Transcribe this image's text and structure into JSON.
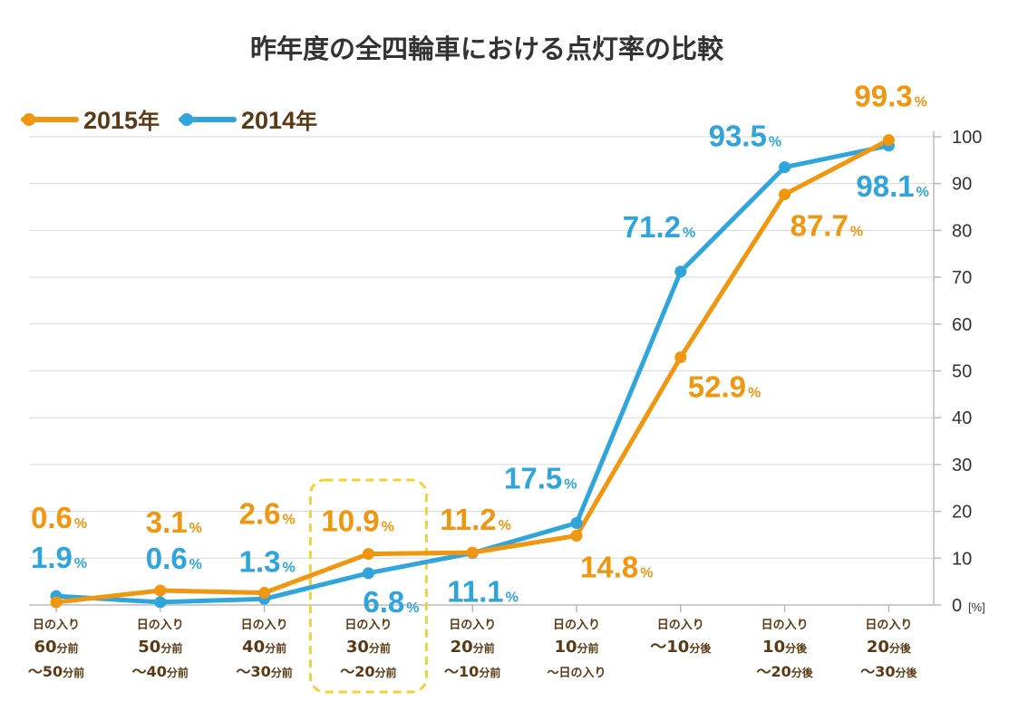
{
  "chart_data": {
    "type": "line",
    "title": "昨年度の全四輪車における点灯率の比較",
    "categories": [
      {
        "line1": "日の入り",
        "line2": "60",
        "line2_suffix": "分前",
        "line3": "～50",
        "line3_suffix": "分前"
      },
      {
        "line1": "日の入り",
        "line2": "50",
        "line2_suffix": "分前",
        "line3": "～40",
        "line3_suffix": "分前"
      },
      {
        "line1": "日の入り",
        "line2": "40",
        "line2_suffix": "分前",
        "line3": "～30",
        "line3_suffix": "分前"
      },
      {
        "line1": "日の入り",
        "line2": "30",
        "line2_suffix": "分前",
        "line3": "～20",
        "line3_suffix": "分前"
      },
      {
        "line1": "日の入り",
        "line2": "20",
        "line2_suffix": "分前",
        "line3": "～10",
        "line3_suffix": "分前"
      },
      {
        "line1": "日の入り",
        "line2": "10",
        "line2_suffix": "分前",
        "line3": "～日の入り",
        "line3_suffix": ""
      },
      {
        "line1": "日の入り",
        "line2": "～10",
        "line2_suffix": "分後",
        "line3": "",
        "line3_suffix": ""
      },
      {
        "line1": "日の入り",
        "line2": "10",
        "line2_suffix": "分後",
        "line3": "～20",
        "line3_suffix": "分後"
      },
      {
        "line1": "日の入り",
        "line2": "20",
        "line2_suffix": "分後",
        "line3": "～30",
        "line3_suffix": "分後"
      }
    ],
    "series": [
      {
        "name": "2015年",
        "name_year": "2015",
        "name_suffix": "年",
        "color": "#f0960f",
        "values": [
          0.6,
          3.1,
          2.6,
          10.9,
          11.2,
          14.8,
          52.9,
          87.7,
          99.3
        ],
        "labels": [
          "0.6",
          "3.1",
          "2.6",
          "10.9",
          "11.2",
          "14.8",
          "52.9",
          "87.7",
          "99.3"
        ]
      },
      {
        "name": "2014年",
        "name_year": "2014",
        "name_suffix": "年",
        "color": "#2fa5dc",
        "values": [
          1.9,
          0.6,
          1.3,
          6.8,
          11.1,
          17.5,
          71.2,
          93.5,
          98.1
        ],
        "labels": [
          "1.9",
          "0.6",
          "1.3",
          "6.8",
          "11.1",
          "17.5",
          "71.2",
          "93.5",
          "98.1"
        ]
      }
    ],
    "ylim": [
      0,
      100
    ],
    "yticks": [
      0,
      10,
      20,
      30,
      40,
      50,
      60,
      70,
      80,
      90,
      100
    ],
    "y_unit": "[%]",
    "percent_sign": "%",
    "legend_position": "top-left",
    "grid": true,
    "highlight_category_index": 3,
    "highlight_color": "#f2d23a",
    "axis_label_color": "#5a3a14"
  }
}
